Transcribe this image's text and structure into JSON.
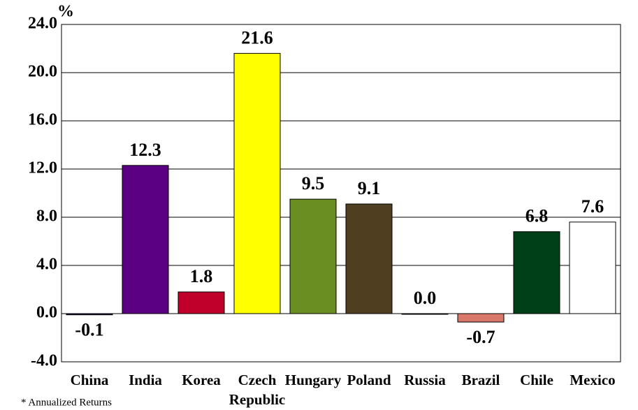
{
  "chart_data": {
    "type": "bar",
    "categories": [
      "China",
      "India",
      "Korea",
      "Czech Republic",
      "Hungary",
      "Poland",
      "Russia",
      "Brazil",
      "Chile",
      "Mexico"
    ],
    "values": [
      -0.1,
      12.3,
      1.8,
      21.6,
      9.5,
      9.1,
      0.0,
      -0.7,
      6.8,
      7.6
    ],
    "value_labels": [
      "-0.1",
      "12.3",
      "1.8",
      "21.6",
      "9.5",
      "9.1",
      "0.0",
      "-0.7",
      "6.8",
      "7.6"
    ],
    "colors": [
      "#1a1a4a",
      "#5a0080",
      "#c0002a",
      "#ffff00",
      "#6b8e23",
      "#4f3f20",
      "#808080",
      "#d9776a",
      "#004018",
      "#ffffff"
    ],
    "ylabel": "%",
    "ylim": [
      -4,
      24
    ],
    "yticks": [
      {
        "value": -4,
        "label": "-4.0"
      },
      {
        "value": 0,
        "label": "0.0"
      },
      {
        "value": 4,
        "label": "4.0"
      },
      {
        "value": 8,
        "label": "8.0"
      },
      {
        "value": 12,
        "label": "12.0"
      },
      {
        "value": 16,
        "label": "16.0"
      },
      {
        "value": 20,
        "label": "20.0"
      },
      {
        "value": 24,
        "label": "24.0"
      }
    ],
    "grid": true,
    "note": "* Annualized Returns"
  }
}
